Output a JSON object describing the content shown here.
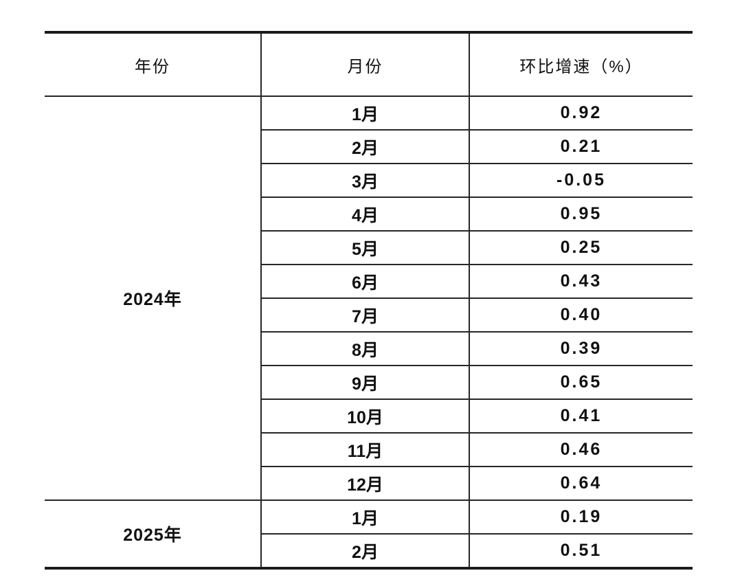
{
  "table": {
    "border_color": "#1b1b1b",
    "header": {
      "year": "年份",
      "month": "月份",
      "growth": "环比增速（%）"
    },
    "groups": [
      {
        "year": "2024年",
        "rows": [
          {
            "month": "1月",
            "value": "0.92"
          },
          {
            "month": "2月",
            "value": "0.21"
          },
          {
            "month": "3月",
            "value": "-0.05"
          },
          {
            "month": "4月",
            "value": "0.95"
          },
          {
            "month": "5月",
            "value": "0.25"
          },
          {
            "month": "6月",
            "value": "0.43"
          },
          {
            "month": "7月",
            "value": "0.40"
          },
          {
            "month": "8月",
            "value": "0.39"
          },
          {
            "month": "9月",
            "value": "0.65"
          },
          {
            "month": "10月",
            "value": "0.41"
          },
          {
            "month": "11月",
            "value": "0.46"
          },
          {
            "month": "12月",
            "value": "0.64"
          }
        ]
      },
      {
        "year": "2025年",
        "rows": [
          {
            "month": "1月",
            "value": "0.19"
          },
          {
            "month": "2月",
            "value": "0.51"
          }
        ]
      }
    ]
  },
  "chart_data": {
    "type": "table",
    "title": "",
    "columns": [
      "年份",
      "月份",
      "环比增速（%）"
    ],
    "rows": [
      [
        "2024年",
        "1月",
        0.92
      ],
      [
        "2024年",
        "2月",
        0.21
      ],
      [
        "2024年",
        "3月",
        -0.05
      ],
      [
        "2024年",
        "4月",
        0.95
      ],
      [
        "2024年",
        "5月",
        0.25
      ],
      [
        "2024年",
        "6月",
        0.43
      ],
      [
        "2024年",
        "7月",
        0.4
      ],
      [
        "2024年",
        "8月",
        0.39
      ],
      [
        "2024年",
        "9月",
        0.65
      ],
      [
        "2024年",
        "10月",
        0.41
      ],
      [
        "2024年",
        "11月",
        0.46
      ],
      [
        "2024年",
        "12月",
        0.64
      ],
      [
        "2025年",
        "1月",
        0.19
      ],
      [
        "2025年",
        "2月",
        0.51
      ]
    ],
    "series": [
      {
        "name": "环比增速（%）",
        "x": [
          "2024-01",
          "2024-02",
          "2024-03",
          "2024-04",
          "2024-05",
          "2024-06",
          "2024-07",
          "2024-08",
          "2024-09",
          "2024-10",
          "2024-11",
          "2024-12",
          "2025-01",
          "2025-02"
        ],
        "values": [
          0.92,
          0.21,
          -0.05,
          0.95,
          0.25,
          0.43,
          0.4,
          0.39,
          0.65,
          0.41,
          0.46,
          0.64,
          0.19,
          0.51
        ]
      }
    ]
  }
}
